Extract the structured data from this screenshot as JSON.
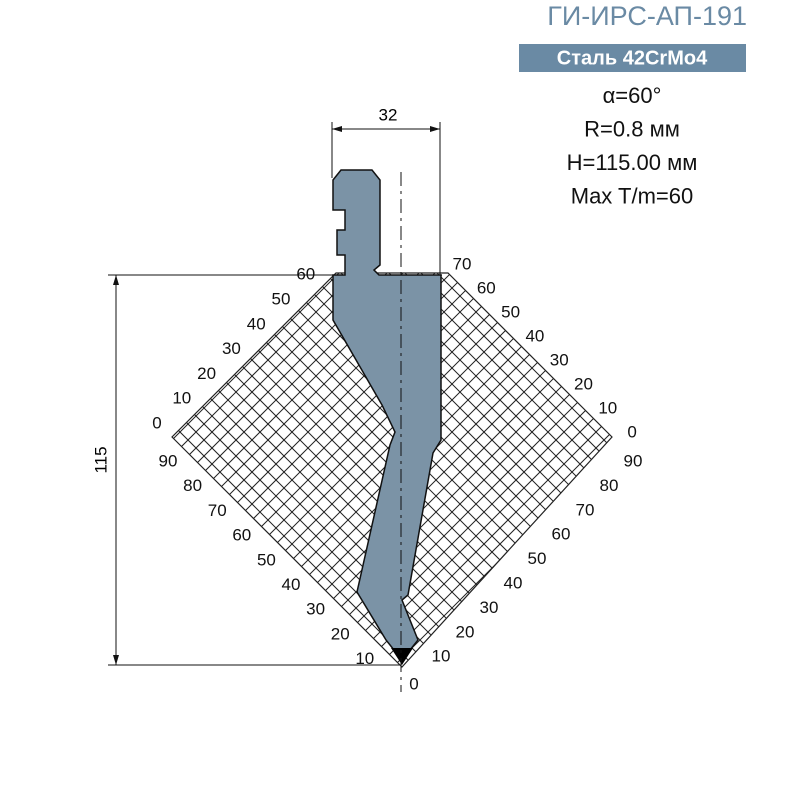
{
  "header": {
    "title": "ГИ-ИРС-АП-191",
    "material": "Сталь 42CrMo4"
  },
  "specs": [
    "α=60°",
    "R=0.8 мм",
    "H=115.00 мм",
    "Max T/m=60"
  ],
  "dimensions": {
    "width": 32,
    "height": 115
  },
  "scales": {
    "left_upper": [
      0,
      10,
      20,
      30,
      40,
      50,
      60
    ],
    "right_upper": [
      70,
      60,
      50,
      40,
      30,
      20,
      10,
      0
    ],
    "left_lower": [
      90,
      80,
      70,
      60,
      50,
      40,
      30,
      20,
      10
    ],
    "right_lower": [
      90,
      80,
      70,
      60,
      50,
      40,
      30,
      20,
      10
    ],
    "bottom": [
      0
    ]
  }
}
